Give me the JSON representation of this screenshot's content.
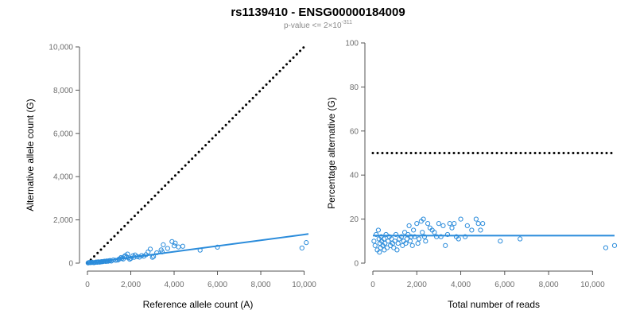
{
  "figure": {
    "title": "rs1139410 - ENSG00000184009",
    "subtitle_prefix": "p-value <= 2",
    "subtitle_times": "×",
    "subtitle_base": "10",
    "subtitle_exponent": "-311"
  },
  "chart_data": [
    {
      "type": "scatter",
      "xlabel": "Reference allele count (A)",
      "ylabel": "Alternative allele count (G)",
      "xlim": [
        0,
        10200
      ],
      "ylim": [
        0,
        10000
      ],
      "xticks": [
        0,
        2000,
        4000,
        6000,
        8000,
        10000
      ],
      "xtick_labels": [
        "0",
        "2,000",
        "4,000",
        "6,000",
        "8,000",
        "10,000"
      ],
      "yticks": [
        0,
        2000,
        4000,
        6000,
        8000,
        10000
      ],
      "ytick_labels": [
        "0",
        "2,000",
        "4,000",
        "6,000",
        "8,000",
        "10,000"
      ],
      "grid": false,
      "point_color": "#2b8cdb",
      "fit_line_color": "#2b8cdb",
      "reference_line_color": "#000000",
      "reference_line": {
        "x": [
          0,
          10000
        ],
        "y": [
          0,
          10000
        ],
        "style": "dotted"
      },
      "fit_line": {
        "x": [
          0,
          10200
        ],
        "y": [
          0,
          1350
        ],
        "style": "solid"
      },
      "points": {
        "x": [
          30,
          60,
          100,
          150,
          200,
          250,
          300,
          350,
          400,
          450,
          500,
          550,
          600,
          650,
          700,
          750,
          800,
          850,
          900,
          950,
          1000,
          1050,
          1100,
          1200,
          1300,
          1400,
          1450,
          1500,
          1550,
          1600,
          1650,
          1700,
          1750,
          1800,
          1850,
          1900,
          1950,
          2000,
          2100,
          2150,
          2200,
          2300,
          2400,
          2500,
          2600,
          2700,
          2800,
          2900,
          3000,
          3050,
          3200,
          3400,
          3450,
          3500,
          3700,
          3900,
          4000,
          4050,
          4200,
          4400,
          5200,
          6000,
          9900,
          10100
        ],
        "y": [
          10,
          25,
          30,
          20,
          45,
          30,
          20,
          35,
          50,
          40,
          60,
          45,
          55,
          70,
          65,
          80,
          90,
          75,
          100,
          85,
          110,
          120,
          95,
          150,
          130,
          140,
          180,
          200,
          260,
          220,
          190,
          300,
          350,
          280,
          420,
          250,
          180,
          220,
          340,
          270,
          380,
          300,
          280,
          350,
          320,
          390,
          520,
          650,
          270,
          310,
          480,
          610,
          520,
          850,
          680,
          1000,
          800,
          930,
          750,
          780,
          600,
          740,
          700,
          950
        ]
      }
    },
    {
      "type": "scatter",
      "xlabel": "Total number of reads",
      "ylabel": "Percentage alternative (G)",
      "xlim": [
        0,
        11000
      ],
      "ylim": [
        0,
        100
      ],
      "xticks": [
        0,
        2000,
        4000,
        6000,
        8000,
        10000
      ],
      "xtick_labels": [
        "0",
        "2,000",
        "4,000",
        "6,000",
        "8,000",
        "10,000"
      ],
      "yticks": [
        0,
        20,
        40,
        60,
        80,
        100
      ],
      "ytick_labels": [
        "0",
        "20",
        "40",
        "60",
        "80",
        "100"
      ],
      "grid": false,
      "point_color": "#2b8cdb",
      "fit_line_color": "#2b8cdb",
      "reference_line_color": "#000000",
      "reference_line": {
        "x": [
          0,
          11000
        ],
        "y": [
          50,
          50
        ],
        "style": "dotted"
      },
      "fit_line": {
        "x": [
          0,
          11000
        ],
        "y": [
          12.5,
          12.5
        ],
        "style": "solid"
      },
      "points": {
        "x": [
          50,
          100,
          150,
          200,
          250,
          280,
          300,
          320,
          350,
          380,
          400,
          450,
          500,
          520,
          550,
          600,
          650,
          700,
          750,
          800,
          850,
          900,
          950,
          1000,
          1050,
          1100,
          1150,
          1200,
          1300,
          1350,
          1400,
          1450,
          1500,
          1550,
          1600,
          1650,
          1700,
          1750,
          1800,
          1850,
          1900,
          2000,
          2050,
          2100,
          2200,
          2250,
          2300,
          2350,
          2400,
          2500,
          2600,
          2700,
          2800,
          2900,
          3000,
          3100,
          3200,
          3300,
          3400,
          3500,
          3600,
          3700,
          3800,
          3900,
          4000,
          4200,
          4300,
          4500,
          4700,
          4800,
          4900,
          5000,
          5800,
          6700,
          10600,
          11000
        ],
        "y": [
          10,
          8,
          13,
          6,
          15,
          11,
          5,
          9,
          7,
          12,
          10,
          8,
          11,
          6,
          9,
          13,
          7,
          10,
          12,
          8,
          11,
          9,
          7,
          10,
          13,
          6,
          9,
          11,
          12,
          8,
          10,
          14,
          9,
          11,
          13,
          17,
          10,
          12,
          8,
          15,
          12,
          18,
          9,
          11,
          19,
          14,
          20,
          12,
          10,
          18,
          16,
          15,
          14,
          12,
          18,
          12,
          17,
          8,
          13,
          18,
          16,
          18,
          12,
          11,
          20,
          12,
          17,
          15,
          20,
          18,
          15,
          18,
          10,
          11,
          7,
          8
        ]
      }
    }
  ]
}
